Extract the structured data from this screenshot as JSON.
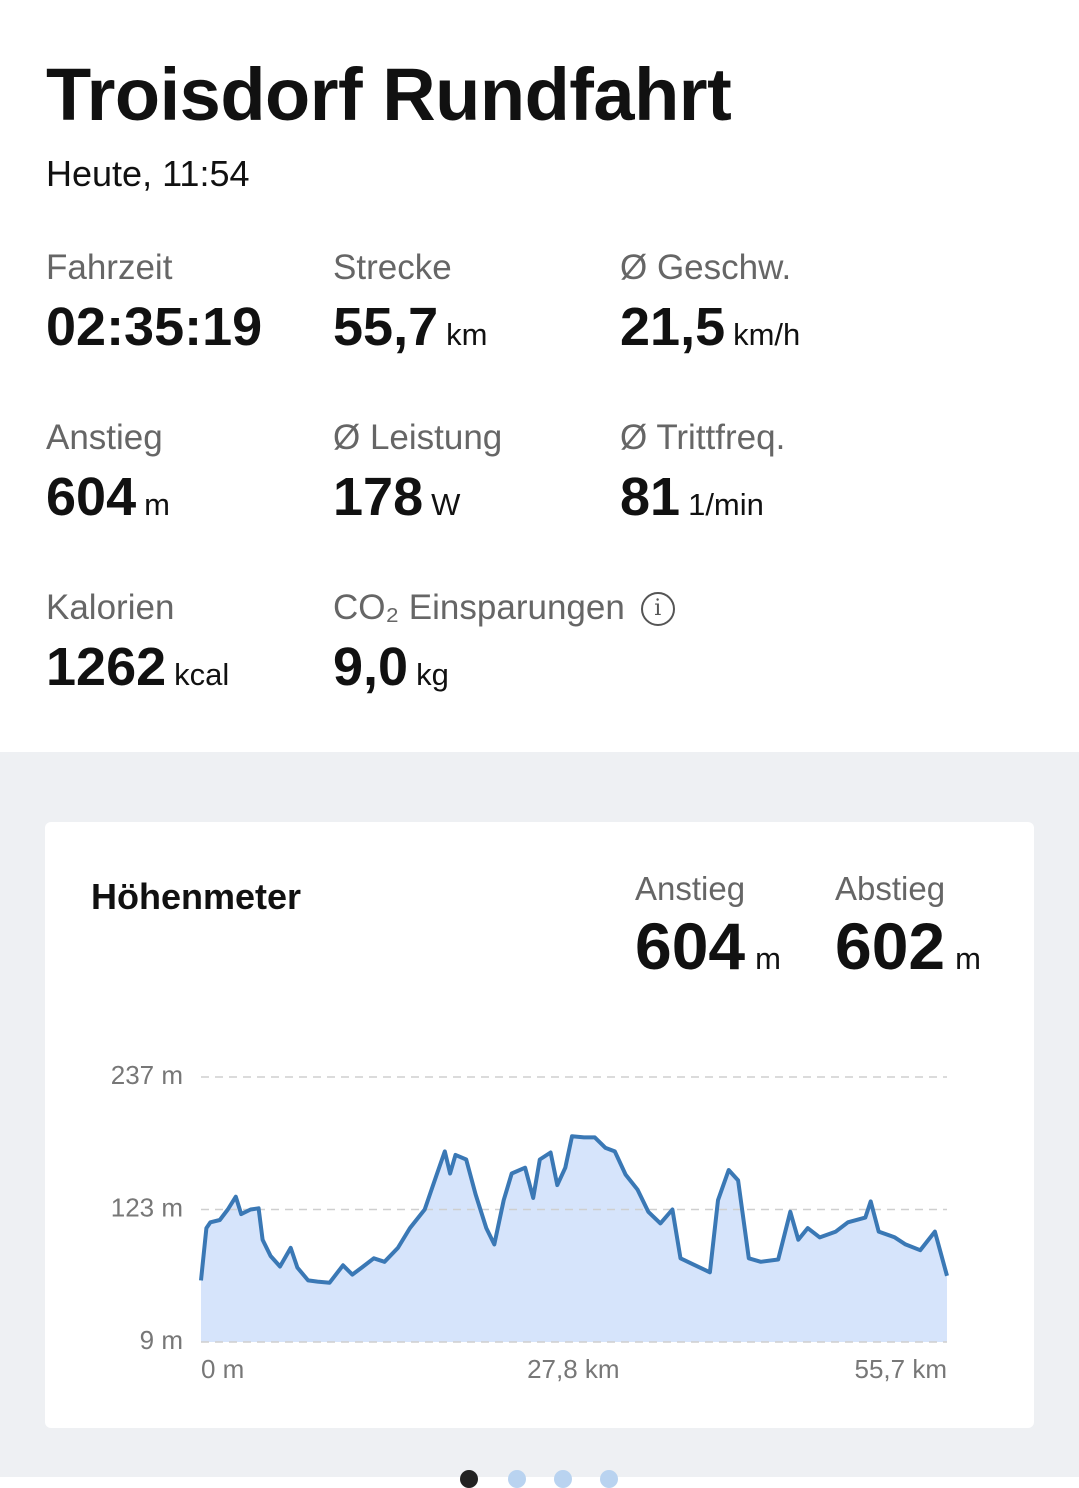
{
  "header": {
    "title": "Troisdorf Rundfahrt",
    "subtitle": "Heute, 11:54"
  },
  "stats": [
    {
      "label": "Fahrzeit",
      "value": "02:35:19"
    },
    {
      "label": "Strecke",
      "value": "55,7",
      "unit": "km"
    },
    {
      "label": "Ø Geschw.",
      "value": "21,5",
      "unit": "km/h"
    },
    {
      "label": "Anstieg",
      "value": "604",
      "unit": "m"
    },
    {
      "label": "Ø Leistung",
      "value": "178",
      "unit": "W"
    },
    {
      "label": "Ø Trittfreq.",
      "value": "81",
      "unit": "1/min"
    },
    {
      "label": "Kalorien",
      "value": "1262",
      "unit": "kcal"
    },
    {
      "label": "CO₂ Einsparungen",
      "value": "9,0",
      "unit": "kg"
    }
  ],
  "elevation": {
    "title": "Höhenmeter",
    "stats": [
      {
        "label": "Anstieg",
        "value": "604",
        "unit": "m"
      },
      {
        "label": "Abstieg",
        "value": "602",
        "unit": "m"
      }
    ]
  },
  "chart_data": {
    "type": "area",
    "x": [
      0,
      0.4,
      0.7,
      1.4,
      2.0,
      2.6,
      3.0,
      3.7,
      4.3,
      4.6,
      5.2,
      5.9,
      6.7,
      7.2,
      8.0,
      8.7,
      9.6,
      10.6,
      11.3,
      12.0,
      12.9,
      13.7,
      14.7,
      15.6,
      16.7,
      17.6,
      18.2,
      18.6,
      19.0,
      19.8,
      20.5,
      21.3,
      21.9,
      22.6,
      23.2,
      24.2,
      24.8,
      25.3,
      26.1,
      26.6,
      27.2,
      27.7,
      28.6,
      29.4,
      30.2,
      30.9,
      31.7,
      32.6,
      33.4,
      34.3,
      35.2,
      35.8,
      36.7,
      38.0,
      38.6,
      39.4,
      40.1,
      40.9,
      41.8,
      43.1,
      44.0,
      44.6,
      45.3,
      46.2,
      47.4,
      48.3,
      49.6,
      50.0,
      50.6,
      51.8,
      52.6,
      53.7,
      54.8,
      55.7
    ],
    "values": [
      62,
      107,
      112,
      114,
      123,
      134,
      119,
      123,
      124,
      97,
      83,
      74,
      90,
      73,
      62,
      61,
      60,
      75,
      67,
      73,
      81,
      78,
      90,
      107,
      123,
      153,
      173,
      154,
      170,
      166,
      136,
      107,
      93,
      131,
      154,
      159,
      133,
      166,
      172,
      144,
      159,
      186,
      185,
      185,
      176,
      173,
      153,
      140,
      121,
      111,
      123,
      81,
      76,
      69,
      131,
      157,
      148,
      81,
      78,
      80,
      121,
      97,
      107,
      99,
      104,
      112,
      116,
      130,
      104,
      99,
      93,
      88,
      104,
      66
    ],
    "color": "#3a78b5",
    "fill": "#d6e4fb",
    "xlim": [
      0,
      55.7
    ],
    "ylim": [
      9,
      237
    ],
    "xticks": [
      {
        "value": 0,
        "label": "0 m"
      },
      {
        "value": 27.8,
        "label": "27,8 km"
      },
      {
        "value": 55.7,
        "label": "55,7 km"
      }
    ],
    "yticks": [
      {
        "value": 9,
        "label": "9 m"
      },
      {
        "value": 123,
        "label": "123 m"
      },
      {
        "value": 237,
        "label": "237 m"
      }
    ],
    "grid": true
  }
}
